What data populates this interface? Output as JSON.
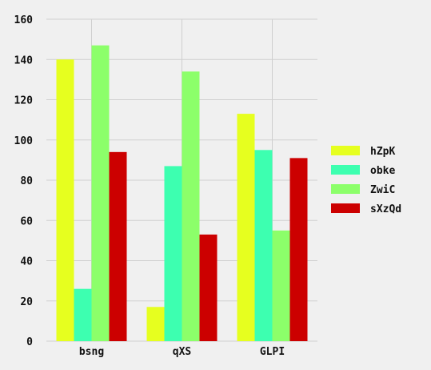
{
  "chart_data": {
    "type": "bar",
    "categories": [
      "bsng",
      "qXS",
      "GLPI"
    ],
    "series": [
      {
        "name": "hZpK",
        "color": "#e6ff1f",
        "values": [
          140,
          17,
          113
        ]
      },
      {
        "name": "obke",
        "color": "#3dffb0",
        "values": [
          26,
          87,
          95
        ]
      },
      {
        "name": "ZwiC",
        "color": "#8cff6a",
        "values": [
          147,
          134,
          55
        ]
      },
      {
        "name": "sXzQd",
        "color": "#cc0000",
        "values": [
          94,
          53,
          91
        ]
      }
    ],
    "yticks": [
      "0",
      "20",
      "40",
      "60",
      "80",
      "100",
      "120",
      "140",
      "160"
    ],
    "ylim": [
      0,
      160
    ],
    "grid": true,
    "legend_position": "right",
    "title": "",
    "xlabel": "",
    "ylabel": ""
  }
}
